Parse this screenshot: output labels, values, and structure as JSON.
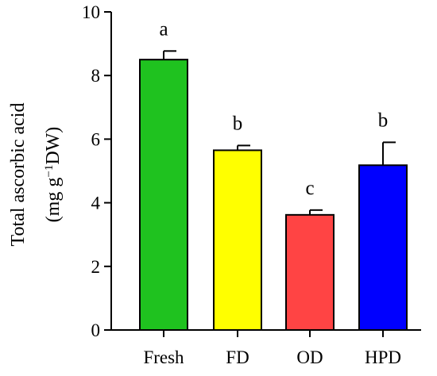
{
  "chart_data": {
    "type": "bar",
    "categories": [
      "Fresh",
      "FD",
      "OD",
      "HPD"
    ],
    "values": [
      8.5,
      5.65,
      3.62,
      5.18
    ],
    "errors": [
      0.27,
      0.15,
      0.15,
      0.72
    ],
    "significance": [
      "a",
      "b",
      "c",
      "b"
    ],
    "colors": [
      "#1FC21F",
      "#FFFF00",
      "#FF4444",
      "#0000FF"
    ],
    "ylim": [
      0,
      10
    ],
    "yticks": [
      0,
      2,
      4,
      6,
      8,
      10
    ],
    "ylabel_line1": "Total ascorbic acid",
    "ylabel_line2_prefix": "(mg g",
    "ylabel_line2_sup": "−1",
    "ylabel_line2_suffix": "DW)",
    "grid": false
  }
}
